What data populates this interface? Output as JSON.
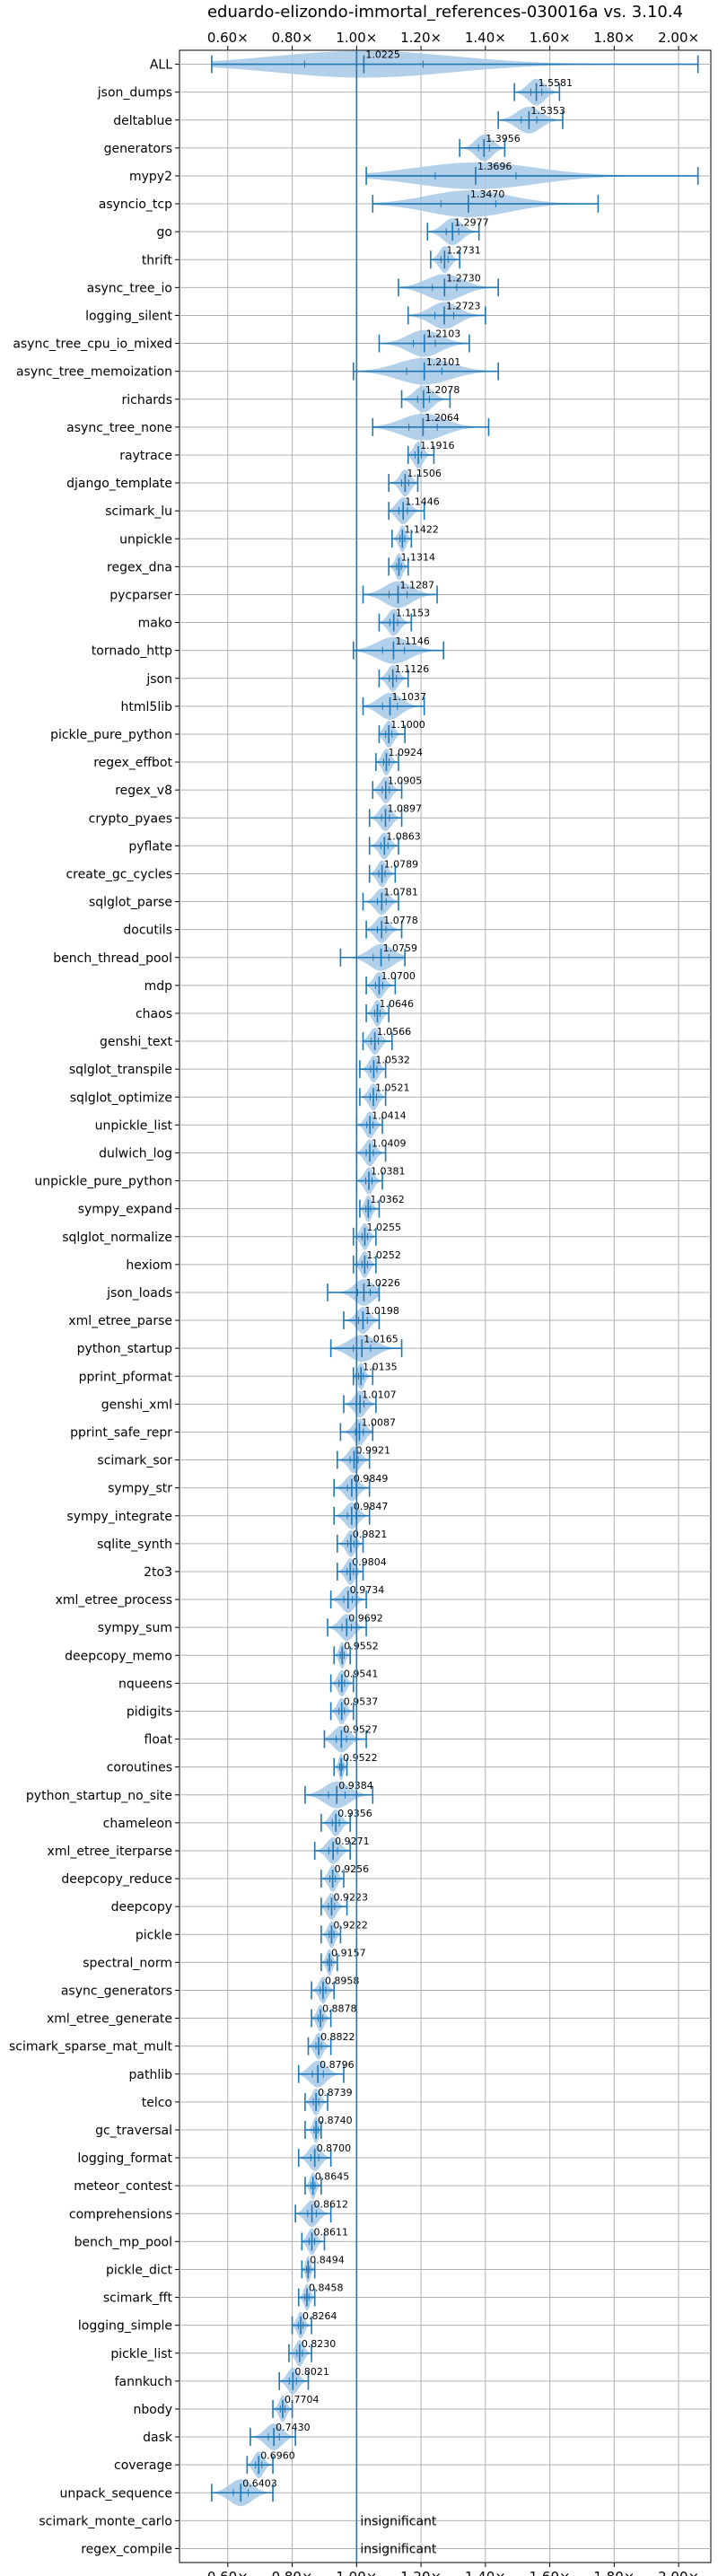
{
  "chart_data": {
    "type": "violin",
    "title": "eduardo-elizondo-immortal_references-030016a vs. 3.10.4",
    "xlim": [
      0.45,
      2.1
    ],
    "x_ticks": [
      0.6,
      0.8,
      1.0,
      1.2,
      1.4,
      1.6,
      1.8,
      2.0
    ],
    "x_tick_labels": [
      "0.60×",
      "0.80×",
      "1.00×",
      "1.20×",
      "1.40×",
      "1.60×",
      "1.80×",
      "2.00×"
    ],
    "x_ticks_top": true,
    "grid": true,
    "reference_line": 1.0,
    "colors": {
      "violin": "#a6c8e6",
      "whisker": "#1f77b4",
      "grid": "#b0b0b0"
    },
    "categories": [
      "ALL",
      "json_dumps",
      "deltablue",
      "generators",
      "mypy2",
      "asyncio_tcp",
      "go",
      "thrift",
      "async_tree_io",
      "logging_silent",
      "async_tree_cpu_io_mixed",
      "async_tree_memoization",
      "richards",
      "async_tree_none",
      "raytrace",
      "django_template",
      "scimark_lu",
      "unpickle",
      "regex_dna",
      "pycparser",
      "mako",
      "tornado_http",
      "json",
      "html5lib",
      "pickle_pure_python",
      "regex_effbot",
      "regex_v8",
      "crypto_pyaes",
      "pyflate",
      "create_gc_cycles",
      "sqlglot_parse",
      "docutils",
      "bench_thread_pool",
      "mdp",
      "chaos",
      "genshi_text",
      "sqlglot_transpile",
      "sqlglot_optimize",
      "unpickle_list",
      "dulwich_log",
      "unpickle_pure_python",
      "sympy_expand",
      "sqlglot_normalize",
      "hexiom",
      "json_loads",
      "xml_etree_parse",
      "python_startup",
      "pprint_pformat",
      "genshi_xml",
      "pprint_safe_repr",
      "scimark_sor",
      "sympy_str",
      "sympy_integrate",
      "sqlite_synth",
      "2to3",
      "xml_etree_process",
      "sympy_sum",
      "deepcopy_memo",
      "nqueens",
      "pidigits",
      "float",
      "coroutines",
      "python_startup_no_site",
      "chameleon",
      "xml_etree_iterparse",
      "deepcopy_reduce",
      "deepcopy",
      "pickle",
      "spectral_norm",
      "async_generators",
      "xml_etree_generate",
      "scimark_sparse_mat_mult",
      "pathlib",
      "telco",
      "gc_traversal",
      "logging_format",
      "meteor_contest",
      "comprehensions",
      "bench_mp_pool",
      "pickle_dict",
      "scimark_fft",
      "logging_simple",
      "pickle_list",
      "fannkuch",
      "nbody",
      "dask",
      "coverage",
      "unpack_sequence",
      "scimark_monte_carlo",
      "regex_compile"
    ],
    "means": [
      1.0225,
      1.5581,
      1.5353,
      1.3956,
      1.3696,
      1.347,
      1.2977,
      1.2731,
      1.273,
      1.2723,
      1.2103,
      1.2101,
      1.2078,
      1.2064,
      1.1916,
      1.1506,
      1.1446,
      1.1422,
      1.1314,
      1.1287,
      1.1153,
      1.1146,
      1.1126,
      1.1037,
      1.1,
      1.0924,
      1.0905,
      1.0897,
      1.0863,
      1.0789,
      1.0781,
      1.0778,
      1.0759,
      1.07,
      1.0646,
      1.0566,
      1.0532,
      1.0521,
      1.0414,
      1.0409,
      1.0381,
      1.0362,
      1.0255,
      1.0252,
      1.0226,
      1.0198,
      1.0165,
      1.0135,
      1.0107,
      1.0087,
      0.9921,
      0.9849,
      0.9847,
      0.9821,
      0.9804,
      0.9734,
      0.9692,
      0.9552,
      0.9541,
      0.9537,
      0.9527,
      0.9522,
      0.9384,
      0.9356,
      0.9271,
      0.9256,
      0.9223,
      0.9222,
      0.9157,
      0.8958,
      0.8878,
      0.8822,
      0.8796,
      0.8739,
      0.874,
      0.87,
      0.8645,
      0.8612,
      0.8611,
      0.8494,
      0.8458,
      0.8264,
      0.823,
      0.8021,
      0.7704,
      0.743,
      0.696,
      0.6403,
      null,
      null
    ],
    "labels": [
      "1.0225",
      "1.5581",
      "1.5353",
      "1.3956",
      "1.3696",
      "1.3470",
      "1.2977",
      "1.2731",
      "1.2730",
      "1.2723",
      "1.2103",
      "1.2101",
      "1.2078",
      "1.2064",
      "1.1916",
      "1.1506",
      "1.1446",
      "1.1422",
      "1.1314",
      "1.1287",
      "1.1153",
      "1.1146",
      "1.1126",
      "1.1037",
      "1.1000",
      "1.0924",
      "1.0905",
      "1.0897",
      "1.0863",
      "1.0789",
      "1.0781",
      "1.0778",
      "1.0759",
      "1.0700",
      "1.0646",
      "1.0566",
      "1.0532",
      "1.0521",
      "1.0414",
      "1.0409",
      "1.0381",
      "1.0362",
      "1.0255",
      "1.0252",
      "1.0226",
      "1.0198",
      "1.0165",
      "1.0135",
      "1.0107",
      "1.0087",
      "0.9921",
      "0.9849",
      "0.9847",
      "0.9821",
      "0.9804",
      "0.9734",
      "0.9692",
      "0.9552",
      "0.9541",
      "0.9537",
      "0.9527",
      "0.9522",
      "0.9384",
      "0.9356",
      "0.9271",
      "0.9256",
      "0.9223",
      "0.9222",
      "0.9157",
      "0.8958",
      "0.8878",
      "0.8822",
      "0.8796",
      "0.8739",
      "0.8740",
      "0.8700",
      "0.8645",
      "0.8612",
      "0.8611",
      "0.8494",
      "0.8458",
      "0.8264",
      "0.8230",
      "0.8021",
      "0.7704",
      "0.7430",
      "0.6960",
      "0.6403",
      "insignificant",
      "insignificant"
    ],
    "mins": [
      0.55,
      1.49,
      1.44,
      1.32,
      1.03,
      1.05,
      1.22,
      1.23,
      1.13,
      1.16,
      1.07,
      0.99,
      1.14,
      1.05,
      1.16,
      1.1,
      1.1,
      1.11,
      1.1,
      1.02,
      1.07,
      0.99,
      1.07,
      1.02,
      1.07,
      1.06,
      1.05,
      1.04,
      1.04,
      1.04,
      1.02,
      1.03,
      0.95,
      1.03,
      1.03,
      1.02,
      1.01,
      1.01,
      1.0,
      1.0,
      1.0,
      1.01,
      0.99,
      0.99,
      0.91,
      0.96,
      0.92,
      0.99,
      0.96,
      0.95,
      0.94,
      0.93,
      0.93,
      0.94,
      0.94,
      0.92,
      0.91,
      0.93,
      0.92,
      0.92,
      0.9,
      0.93,
      0.84,
      0.89,
      0.87,
      0.89,
      0.89,
      0.89,
      0.89,
      0.86,
      0.86,
      0.85,
      0.82,
      0.84,
      0.84,
      0.82,
      0.84,
      0.81,
      0.83,
      0.83,
      0.82,
      0.8,
      0.79,
      0.76,
      0.74,
      0.67,
      0.66,
      0.55,
      null,
      null
    ],
    "maxs": [
      2.06,
      1.63,
      1.64,
      1.46,
      2.06,
      1.75,
      1.38,
      1.32,
      1.44,
      1.4,
      1.35,
      1.44,
      1.29,
      1.41,
      1.24,
      1.19,
      1.21,
      1.17,
      1.16,
      1.25,
      1.17,
      1.27,
      1.16,
      1.21,
      1.15,
      1.13,
      1.14,
      1.14,
      1.13,
      1.12,
      1.13,
      1.14,
      1.15,
      1.12,
      1.1,
      1.11,
      1.09,
      1.09,
      1.08,
      1.09,
      1.08,
      1.07,
      1.06,
      1.06,
      1.07,
      1.07,
      1.14,
      1.05,
      1.06,
      1.05,
      1.04,
      1.04,
      1.04,
      1.02,
      1.02,
      1.03,
      1.03,
      0.98,
      0.99,
      0.99,
      1.03,
      0.97,
      1.05,
      0.98,
      0.98,
      0.96,
      0.97,
      0.95,
      0.94,
      0.93,
      0.92,
      0.92,
      0.96,
      0.91,
      0.89,
      0.92,
      0.89,
      0.92,
      0.9,
      0.87,
      0.87,
      0.86,
      0.86,
      0.85,
      0.8,
      0.81,
      0.74,
      0.74,
      null,
      null
    ]
  }
}
